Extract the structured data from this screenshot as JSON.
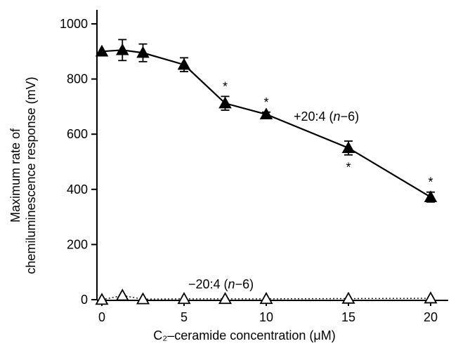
{
  "chart_data": {
    "type": "line",
    "xlabel": "C₂–ceramide concentration (μM)",
    "ylabel_lines": [
      "Maximum rate of",
      "chemiluminescence response (mV)"
    ],
    "xlim": [
      0,
      21
    ],
    "ylim": [
      0,
      1050
    ],
    "x_ticks": [
      0,
      5,
      10,
      15,
      20
    ],
    "y_ticks": [
      0,
      200,
      400,
      600,
      800,
      1000
    ],
    "grid": false,
    "legend": "none",
    "series": [
      {
        "name": "+20:4 (n−6)",
        "label_text": "+20:4 (",
        "label_italic": "n",
        "label_tail": "−6)",
        "marker": "filled-triangle",
        "line": "solid",
        "x": [
          0,
          1.25,
          2.5,
          5,
          7.5,
          10,
          15,
          20
        ],
        "y": [
          900,
          905,
          895,
          852,
          712,
          672,
          550,
          372
        ],
        "err": [
          0,
          38,
          32,
          25,
          25,
          8,
          25,
          18
        ],
        "significant": [
          false,
          false,
          false,
          false,
          true,
          true,
          true,
          true
        ],
        "significance_marker": "*"
      },
      {
        "name": "−20:4 (n−6)",
        "label_text": "−20:4 (",
        "label_italic": "n",
        "label_tail": "−6)",
        "marker": "open-triangle",
        "line": "dotted",
        "x": [
          0,
          1.25,
          2.5,
          5,
          7.5,
          10,
          15,
          20
        ],
        "y": [
          0,
          15,
          2,
          3,
          3,
          3,
          4,
          5
        ]
      }
    ]
  }
}
